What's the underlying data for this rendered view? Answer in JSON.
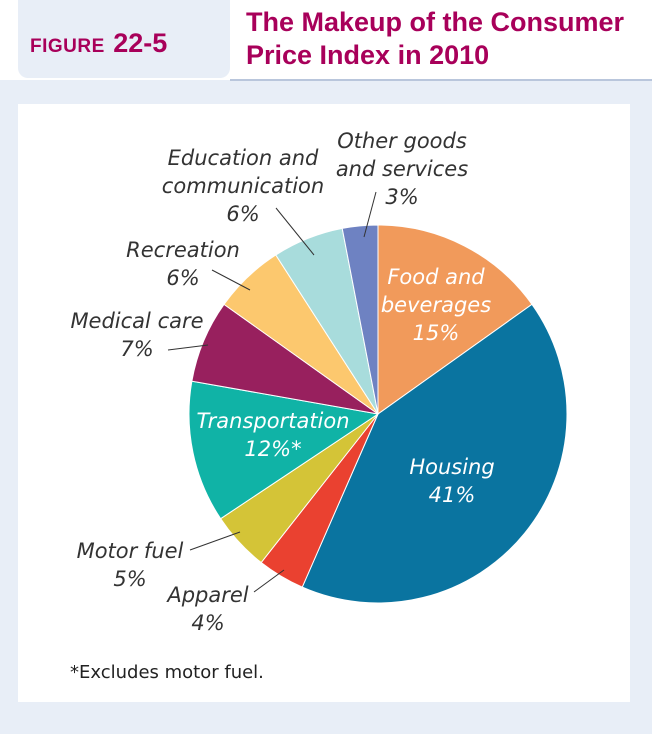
{
  "figure": {
    "word": "FIGURE",
    "number": "22-5"
  },
  "title": {
    "line1": "The Makeup of the Consumer",
    "line2": "Price Index in 2010"
  },
  "footnote": "*Excludes motor fuel.",
  "chart_data": {
    "type": "pie",
    "title": "The Makeup of the Consumer Price Index in 2010",
    "start_angle_deg": 0,
    "direction": "clockwise",
    "slices": [
      {
        "name": "Food and beverages",
        "label_lines": [
          "Food and",
          "beverages",
          "15%"
        ],
        "value": 15,
        "color": "#f19a5b",
        "label_inside": true
      },
      {
        "name": "Housing",
        "label_lines": [
          "Housing",
          "41%"
        ],
        "value": 41,
        "color": "#0a74a0",
        "label_inside": true
      },
      {
        "name": "Apparel",
        "label_lines": [
          "Apparel",
          "4%"
        ],
        "value": 4,
        "color": "#ea4130",
        "label_inside": false
      },
      {
        "name": "Motor fuel",
        "label_lines": [
          "Motor fuel",
          "5%"
        ],
        "value": 5,
        "color": "#d4c437",
        "label_inside": false
      },
      {
        "name": "Transportation",
        "label_lines": [
          "Transportation",
          "12%*"
        ],
        "value": 12,
        "color": "#10b3a6",
        "label_inside": true
      },
      {
        "name": "Medical care",
        "label_lines": [
          "Medical care",
          "7%"
        ],
        "value": 7,
        "color": "#98205e",
        "label_inside": false
      },
      {
        "name": "Recreation",
        "label_lines": [
          "Recreation",
          "6%"
        ],
        "value": 6,
        "color": "#fcc86e",
        "label_inside": false
      },
      {
        "name": "Education and communication",
        "label_lines": [
          "Education and",
          "communication",
          "6%"
        ],
        "value": 6,
        "color": "#a8dcdc",
        "label_inside": false
      },
      {
        "name": "Other goods and services",
        "label_lines": [
          "Other goods",
          "and services",
          "3%"
        ],
        "value": 3,
        "color": "#6e82c2",
        "label_inside": false
      }
    ]
  }
}
